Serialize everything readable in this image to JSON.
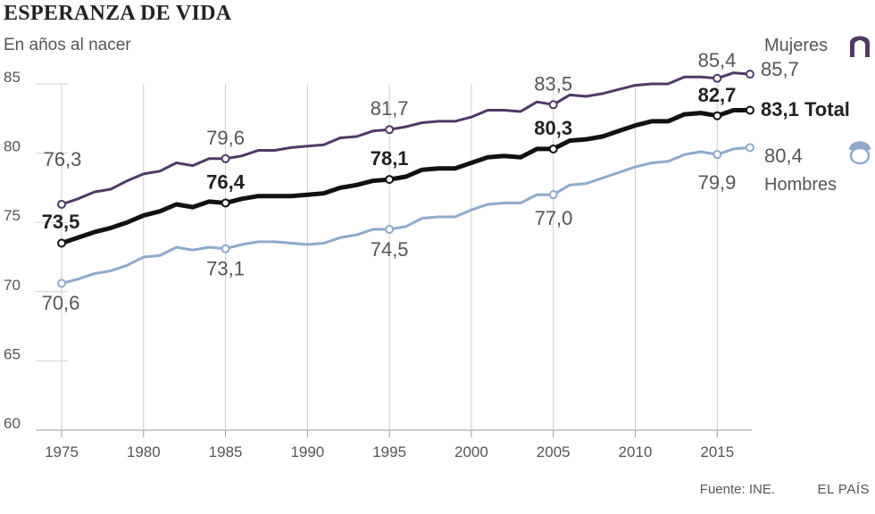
{
  "title": "ESPERANZA DE VIDA",
  "subtitle": "En años al nacer",
  "source": "Fuente: INE.",
  "brand": "EL PAÍS",
  "chart_data": {
    "type": "line",
    "title": "ESPERANZA DE VIDA",
    "subtitle": "En años al nacer",
    "xlabel": "",
    "ylabel": "",
    "xlim": [
      1975,
      2017
    ],
    "ylim": [
      60,
      87
    ],
    "grid": true,
    "x_ticks": [
      "1975",
      "1980",
      "1985",
      "1990",
      "1995",
      "2000",
      "2005",
      "2010",
      "2015"
    ],
    "y_ticks": [
      "60",
      "65",
      "70",
      "75",
      "80",
      "85"
    ],
    "x": [
      1975,
      1976,
      1977,
      1978,
      1979,
      1980,
      1981,
      1982,
      1983,
      1984,
      1985,
      1986,
      1987,
      1988,
      1989,
      1990,
      1991,
      1992,
      1993,
      1994,
      1995,
      1996,
      1997,
      1998,
      1999,
      2000,
      2001,
      2002,
      2003,
      2004,
      2005,
      2006,
      2007,
      2008,
      2009,
      2010,
      2011,
      2012,
      2013,
      2014,
      2015,
      2016,
      2017
    ],
    "series": [
      {
        "name": "Mujeres",
        "color": "#4f3a66",
        "values": [
          76.3,
          76.7,
          77.2,
          77.4,
          78.0,
          78.5,
          78.7,
          79.3,
          79.1,
          79.6,
          79.6,
          79.8,
          80.2,
          80.2,
          80.4,
          80.5,
          80.6,
          81.1,
          81.2,
          81.6,
          81.7,
          81.9,
          82.2,
          82.3,
          82.3,
          82.6,
          83.1,
          83.1,
          83.0,
          83.7,
          83.5,
          84.2,
          84.1,
          84.3,
          84.6,
          84.9,
          85.0,
          85.0,
          85.5,
          85.5,
          85.4,
          85.8,
          85.7
        ],
        "labels": [
          {
            "year": 1975,
            "text": "76,3"
          },
          {
            "year": 1985,
            "text": "79,6"
          },
          {
            "year": 1995,
            "text": "81,7"
          },
          {
            "year": 2005,
            "text": "83,5"
          },
          {
            "year": 2015,
            "text": "85,4"
          }
        ],
        "end_label": "85,7"
      },
      {
        "name": "Total",
        "color": "#111111",
        "values": [
          73.5,
          73.9,
          74.3,
          74.6,
          75.0,
          75.5,
          75.8,
          76.3,
          76.1,
          76.5,
          76.4,
          76.7,
          76.9,
          76.9,
          76.9,
          77.0,
          77.1,
          77.5,
          77.7,
          78.0,
          78.1,
          78.3,
          78.8,
          78.9,
          78.9,
          79.3,
          79.7,
          79.8,
          79.7,
          80.3,
          80.3,
          80.9,
          81.0,
          81.2,
          81.6,
          82.0,
          82.3,
          82.3,
          82.8,
          82.9,
          82.7,
          83.1,
          83.1
        ],
        "labels": [
          {
            "year": 1975,
            "text": "73,5"
          },
          {
            "year": 1985,
            "text": "76,4"
          },
          {
            "year": 1995,
            "text": "78,1"
          },
          {
            "year": 2005,
            "text": "80,3"
          },
          {
            "year": 2015,
            "text": "82,7"
          }
        ],
        "end_label": "83,1"
      },
      {
        "name": "Hombres",
        "color": "#8eaacb",
        "values": [
          70.6,
          70.9,
          71.3,
          71.5,
          71.9,
          72.5,
          72.6,
          73.2,
          73.0,
          73.2,
          73.1,
          73.4,
          73.6,
          73.6,
          73.5,
          73.4,
          73.5,
          73.9,
          74.1,
          74.5,
          74.5,
          74.7,
          75.3,
          75.4,
          75.4,
          75.9,
          76.3,
          76.4,
          76.4,
          77.0,
          77.0,
          77.7,
          77.8,
          78.2,
          78.6,
          79.0,
          79.3,
          79.4,
          79.9,
          80.1,
          79.9,
          80.3,
          80.4
        ],
        "labels": [
          {
            "year": 1975,
            "text": "70,6"
          },
          {
            "year": 1985,
            "text": "73,1"
          },
          {
            "year": 1995,
            "text": "74,5"
          },
          {
            "year": 2005,
            "text": "77,0"
          },
          {
            "year": 2015,
            "text": "79,9"
          }
        ],
        "end_label": "80,4"
      }
    ]
  }
}
